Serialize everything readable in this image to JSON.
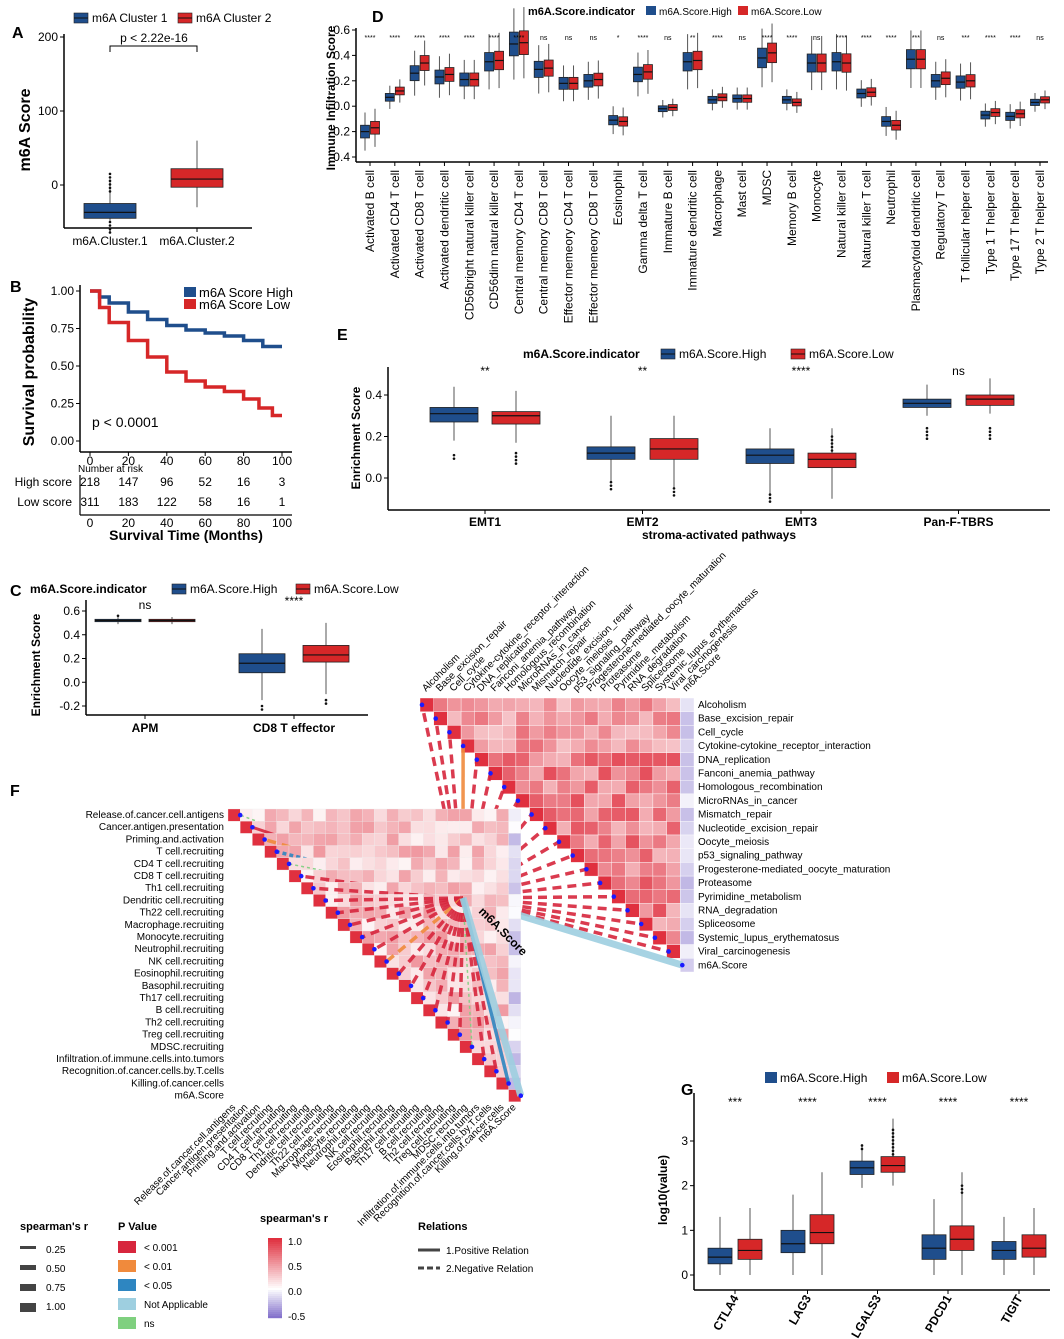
{
  "colors": {
    "high": "#1F4E8C",
    "low": "#D62728",
    "grid_pos": "#E8303F",
    "grid_neg": "#7B68C8",
    "p001": "#D7263D",
    "p01": "#F08A3C",
    "p05": "#2E86C1",
    "na": "#9ECFE0",
    "ns": "#7FD07F"
  },
  "panel_labels": [
    "A",
    "B",
    "C",
    "D",
    "E",
    "F",
    "G"
  ],
  "chart_data": [
    {
      "id": "A",
      "type": "box",
      "title": "",
      "legend": [
        "m6A Cluster 1",
        "m6A Cluster 2"
      ],
      "ylabel": "m6A Score",
      "yticks": [
        "0",
        "100",
        "200"
      ],
      "ylim": [
        -50,
        200
      ],
      "categories": [
        "m6A.Cluster.1",
        "m6A.Cluster.2"
      ],
      "annotation": "p < 2.22e-16",
      "boxes": [
        {
          "name": "m6A Cluster 1",
          "q1": -45,
          "median": -37,
          "q3": -25,
          "wl": -50,
          "wh": 8
        },
        {
          "name": "m6A Cluster 2",
          "q1": -3,
          "median": 8,
          "q3": 22,
          "wl": -30,
          "wh": 60
        }
      ]
    },
    {
      "id": "B",
      "type": "line",
      "title": "",
      "legend": [
        "m6A Score High",
        "m6A Score Low"
      ],
      "ylabel": "Survival probability",
      "xlabel": "Survival Time (Months)",
      "yticks": [
        "0.00",
        "0.25",
        "0.50",
        "0.75",
        "1.00"
      ],
      "xticks": [
        "0",
        "20",
        "40",
        "60",
        "80",
        "100"
      ],
      "annotation": "p < 0.0001",
      "risk_title": "Number at risk",
      "risk_rows": [
        {
          "label": "High score",
          "values": [
            "218",
            "147",
            "96",
            "52",
            "16",
            "3"
          ]
        },
        {
          "label": "Low score",
          "values": [
            "311",
            "183",
            "122",
            "58",
            "16",
            "1"
          ]
        }
      ],
      "series": [
        {
          "name": "m6A Score High",
          "x": [
            0,
            5,
            10,
            20,
            30,
            40,
            50,
            60,
            70,
            80,
            90,
            100
          ],
          "y": [
            1.0,
            0.96,
            0.92,
            0.86,
            0.81,
            0.77,
            0.74,
            0.72,
            0.7,
            0.67,
            0.63,
            0.63
          ]
        },
        {
          "name": "m6A Score Low",
          "x": [
            0,
            5,
            10,
            20,
            30,
            40,
            50,
            60,
            70,
            80,
            88,
            95,
            100
          ],
          "y": [
            1.0,
            0.89,
            0.79,
            0.67,
            0.56,
            0.46,
            0.4,
            0.36,
            0.33,
            0.28,
            0.22,
            0.17,
            0.17
          ]
        }
      ]
    },
    {
      "id": "C",
      "type": "box",
      "legend_title": "m6A.Score.indicator",
      "legend": [
        "m6A.Score.High",
        "m6A.Score.Low"
      ],
      "ylabel": "Enrichment Score",
      "yticks": [
        "-0.2",
        "0.0",
        "0.2",
        "0.4",
        "0.6"
      ],
      "ylim": [
        -0.25,
        0.65
      ],
      "categories": [
        "APM",
        "CD8 T effector"
      ],
      "signif": [
        "ns",
        "****"
      ],
      "boxes": [
        [
          {
            "q1": 0.51,
            "median": 0.52,
            "q3": 0.53,
            "wl": 0.49,
            "wh": 0.55
          },
          {
            "q1": 0.51,
            "median": 0.52,
            "q3": 0.53,
            "wl": 0.49,
            "wh": 0.55
          }
        ],
        [
          {
            "q1": 0.08,
            "median": 0.16,
            "q3": 0.24,
            "wl": -0.15,
            "wh": 0.45
          },
          {
            "q1": 0.17,
            "median": 0.23,
            "q3": 0.31,
            "wl": -0.1,
            "wh": 0.5
          }
        ]
      ]
    },
    {
      "id": "D",
      "type": "box",
      "legend_title": "m6A.Score.indicator",
      "legend": [
        "m6A.Score.High",
        "m6A.Score.Low"
      ],
      "ylabel": "Immune Infiltration Score",
      "yticks": [
        "-0.4",
        "-0.2",
        "0.0",
        "0.2",
        "0.4",
        "0.6"
      ],
      "ylim": [
        -0.45,
        0.62
      ],
      "categories": [
        "Activated B cell",
        "Activated CD4 T cell",
        "Activated CD8 T cell",
        "Activated dendritic cell",
        "CD56bright natural killer cell",
        "CD56dim natural killer cell",
        "Central memory CD4 T cell",
        "Central memory CD8 T cell",
        "Effector memeory CD4 T cell",
        "Effector memeory CD8 T cell",
        "Eosinophil",
        "Gamma delta T cell",
        "Immature  B cell",
        "Immature dendritic cell",
        "Macrophage",
        "Mast cell",
        "MDSC",
        "Memory B cell",
        "Monocyte",
        "Natural killer cell",
        "Natural killer T cell",
        "Neutrophil",
        "Plasmacytoid dendritic cell",
        "Regulatory T cell",
        "T follicular helper cell",
        "Type 1 T helper cell",
        "Type 17 T helper cell",
        "Type 2 T helper cell"
      ],
      "signif": [
        "****",
        "****",
        "****",
        "****",
        "****",
        "****",
        "****",
        "ns",
        "ns",
        "ns",
        "*",
        "****",
        "ns",
        "**",
        "****",
        "ns",
        "****",
        "****",
        "ns",
        "****",
        "****",
        "****",
        "***",
        "ns",
        "***",
        "****",
        "****",
        "ns"
      ],
      "high_median": [
        -0.2,
        0.07,
        0.26,
        0.23,
        0.21,
        0.35,
        0.49,
        0.29,
        0.18,
        0.2,
        -0.11,
        0.25,
        -0.02,
        0.35,
        0.05,
        0.06,
        0.38,
        0.05,
        0.34,
        0.35,
        0.1,
        -0.12,
        0.37,
        0.2,
        0.19,
        -0.07,
        -0.08,
        0.03
      ],
      "low_median": [
        -0.17,
        0.12,
        0.34,
        0.25,
        0.21,
        0.36,
        0.5,
        0.3,
        0.18,
        0.21,
        -0.12,
        0.27,
        -0.01,
        0.36,
        0.07,
        0.06,
        0.42,
        0.03,
        0.34,
        0.34,
        0.11,
        -0.15,
        0.37,
        0.22,
        0.2,
        -0.05,
        -0.06,
        0.05
      ]
    },
    {
      "id": "E",
      "type": "box",
      "legend_title": "m6A.Score.indicator",
      "legend": [
        "m6A.Score.High",
        "m6A.Score.Low"
      ],
      "ylabel": "Enrichment Score",
      "xlabel": "stroma-activated pathways",
      "yticks": [
        "0.0",
        "0.2",
        "0.4"
      ],
      "ylim": [
        -0.15,
        0.52
      ],
      "categories": [
        "EMT1",
        "EMT2",
        "EMT3",
        "Pan-F-TBRS"
      ],
      "signif": [
        "**",
        "**",
        "****",
        "ns"
      ],
      "boxes": [
        [
          {
            "q1": 0.27,
            "median": 0.31,
            "q3": 0.34,
            "wl": 0.18,
            "wh": 0.44
          },
          {
            "q1": 0.26,
            "median": 0.3,
            "q3": 0.32,
            "wl": 0.17,
            "wh": 0.42
          }
        ],
        [
          {
            "q1": 0.09,
            "median": 0.12,
            "q3": 0.15,
            "wl": -0.02,
            "wh": 0.3
          },
          {
            "q1": 0.09,
            "median": 0.14,
            "q3": 0.19,
            "wl": -0.05,
            "wh": 0.3
          }
        ],
        [
          {
            "q1": 0.07,
            "median": 0.11,
            "q3": 0.14,
            "wl": -0.08,
            "wh": 0.24
          },
          {
            "q1": 0.05,
            "median": 0.09,
            "q3": 0.12,
            "wl": -0.1,
            "wh": 0.24
          }
        ],
        [
          {
            "q1": 0.34,
            "median": 0.36,
            "q3": 0.38,
            "wl": 0.3,
            "wh": 0.45
          },
          {
            "q1": 0.35,
            "median": 0.38,
            "q3": 0.4,
            "wl": 0.31,
            "wh": 0.48
          }
        ]
      ]
    },
    {
      "id": "F",
      "type": "heatmap",
      "left_rows": [
        "Release.of.cancer.cell.antigens",
        "Cancer.antigen.presentation",
        "Priming.and.activation",
        "T cell.recruiting",
        "CD4 T cell.recruiting",
        "CD8 T cell.recruiting",
        "Th1 cell.recruiting",
        "Dendritic cell.recruiting",
        "Th22 cell.recruiting",
        "Macrophage.recruiting",
        "Monocyte.recruiting",
        "Neutrophil.recruiting",
        "NK cell.recruiting",
        "Eosinophil.recruiting",
        "Basophil.recruiting",
        "Th17 cell.recruiting",
        "B cell.recruiting",
        "Th2 cell.recruiting",
        "Treg cell.recruiting",
        "MDSC.recruiting",
        "Infiltration.of.immune.cells.into.tumors",
        "Recognition.of.cancer.cells.by.T.cells",
        "Killing.of.cancer.cells",
        "m6A.Score"
      ],
      "right_rows": [
        "Alcoholism",
        "Base_excision_repair",
        "Cell_cycle",
        "Cytokine-cytokine_receptor_interaction",
        "DNA_replication",
        "Fanconi_anemia_pathway",
        "Homologous_recombination",
        "MicroRNAs_in_cancer",
        "Mismatch_repair",
        "Nucleotide_excision_repair",
        "Oocyte_meiosis",
        "p53_signaling_pathway",
        "Progesterone-mediated_oocyte_maturation",
        "Proteasome",
        "Pyrimidine_metabolism",
        "RNA_degradation",
        "Spliceosome",
        "Systemic_lupus_erythematosus",
        "Viral_carcinogenesis",
        "m6A.Score"
      ],
      "center_label": "m6A.Score",
      "legend_size_title": "spearman's r",
      "legend_size": [
        "0.25",
        "0.50",
        "0.75",
        "1.00"
      ],
      "legend_p_title": "P Value",
      "legend_p": [
        "< 0.001",
        "< 0.01",
        "< 0.05",
        "Not Applicable",
        "ns"
      ],
      "legend_color_title": "spearman's r",
      "legend_color": [
        "1.0",
        "0.5",
        "0.0",
        "-0.5"
      ],
      "legend_rel_title": "Relations",
      "legend_rel": [
        "1.Positive Relation",
        "2.Negative Relation"
      ]
    },
    {
      "id": "G",
      "type": "box",
      "legend": [
        "m6A.Score.High",
        "m6A.Score.Low"
      ],
      "ylabel": "log10(value)",
      "yticks": [
        "0",
        "1",
        "2",
        "3"
      ],
      "ylim": [
        -0.2,
        3.8
      ],
      "categories": [
        "CTLA4",
        "LAG3",
        "LGALS3",
        "PDCD1",
        "TIGIT"
      ],
      "signif": [
        "***",
        "****",
        "****",
        "****",
        "****"
      ],
      "boxes": [
        [
          {
            "q1": 0.25,
            "median": 0.4,
            "q3": 0.6,
            "wl": 0.0,
            "wh": 1.3
          },
          {
            "q1": 0.35,
            "median": 0.55,
            "q3": 0.8,
            "wl": 0.0,
            "wh": 1.5
          }
        ],
        [
          {
            "q1": 0.5,
            "median": 0.7,
            "q3": 1.0,
            "wl": 0.0,
            "wh": 1.8
          },
          {
            "q1": 0.7,
            "median": 0.95,
            "q3": 1.35,
            "wl": 0.0,
            "wh": 2.3
          }
        ],
        [
          {
            "q1": 2.25,
            "median": 2.4,
            "q3": 2.55,
            "wl": 1.95,
            "wh": 2.9
          },
          {
            "q1": 2.3,
            "median": 2.45,
            "q3": 2.65,
            "wl": 2.0,
            "wh": 3.5
          }
        ],
        [
          {
            "q1": 0.35,
            "median": 0.6,
            "q3": 0.9,
            "wl": 0.0,
            "wh": 1.7
          },
          {
            "q1": 0.55,
            "median": 0.8,
            "q3": 1.1,
            "wl": 0.0,
            "wh": 2.3
          }
        ],
        [
          {
            "q1": 0.35,
            "median": 0.55,
            "q3": 0.75,
            "wl": 0.0,
            "wh": 1.3
          },
          {
            "q1": 0.4,
            "median": 0.6,
            "q3": 0.9,
            "wl": 0.0,
            "wh": 1.5
          }
        ]
      ]
    }
  ]
}
